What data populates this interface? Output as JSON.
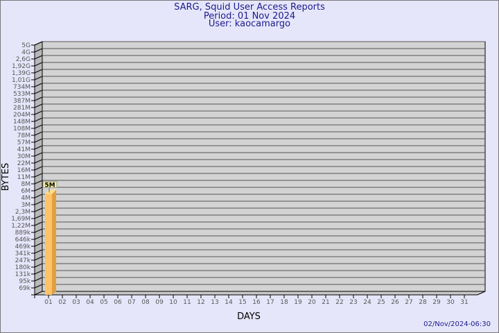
{
  "header": {
    "title": "SARG, Squid User Access Reports",
    "period": "Period: 01 Nov 2024",
    "user": "User: kaocamargo"
  },
  "footer": {
    "timestamp": "02/Nov/2024-06:30"
  },
  "colors": {
    "background": "#e6e6fa",
    "plot": "#d3d3d3",
    "bar": "#ffc266",
    "bar_side": "#e0a040",
    "text": "#1a1a8c"
  },
  "chart_data": {
    "type": "bar",
    "title": "SARG, Squid User Access Reports",
    "xlabel": "DAYS",
    "ylabel": "BYTES",
    "y_scale": "log",
    "yticks": [
      "5G",
      "4G",
      "2,6G",
      "1,92G",
      "1,39G",
      "1,01G",
      "734M",
      "533M",
      "387M",
      "281M",
      "204M",
      "148M",
      "108M",
      "78M",
      "57M",
      "41M",
      "30M",
      "22M",
      "16M",
      "11M",
      "8M",
      "6M",
      "4M",
      "3M",
      "2,3M",
      "1,69M",
      "1,22M",
      "889k",
      "646k",
      "469k",
      "341k",
      "247k",
      "180k",
      "131k",
      "95k",
      "69k"
    ],
    "categories": [
      "01",
      "02",
      "03",
      "04",
      "05",
      "06",
      "07",
      "08",
      "09",
      "10",
      "11",
      "12",
      "13",
      "14",
      "15",
      "16",
      "17",
      "18",
      "19",
      "20",
      "21",
      "22",
      "23",
      "24",
      "25",
      "26",
      "27",
      "28",
      "29",
      "30",
      "31"
    ],
    "values": [
      5000000,
      0,
      0,
      0,
      0,
      0,
      0,
      0,
      0,
      0,
      0,
      0,
      0,
      0,
      0,
      0,
      0,
      0,
      0,
      0,
      0,
      0,
      0,
      0,
      0,
      0,
      0,
      0,
      0,
      0,
      0
    ],
    "data_labels": [
      "5M"
    ],
    "grid": true,
    "legend": "none"
  }
}
